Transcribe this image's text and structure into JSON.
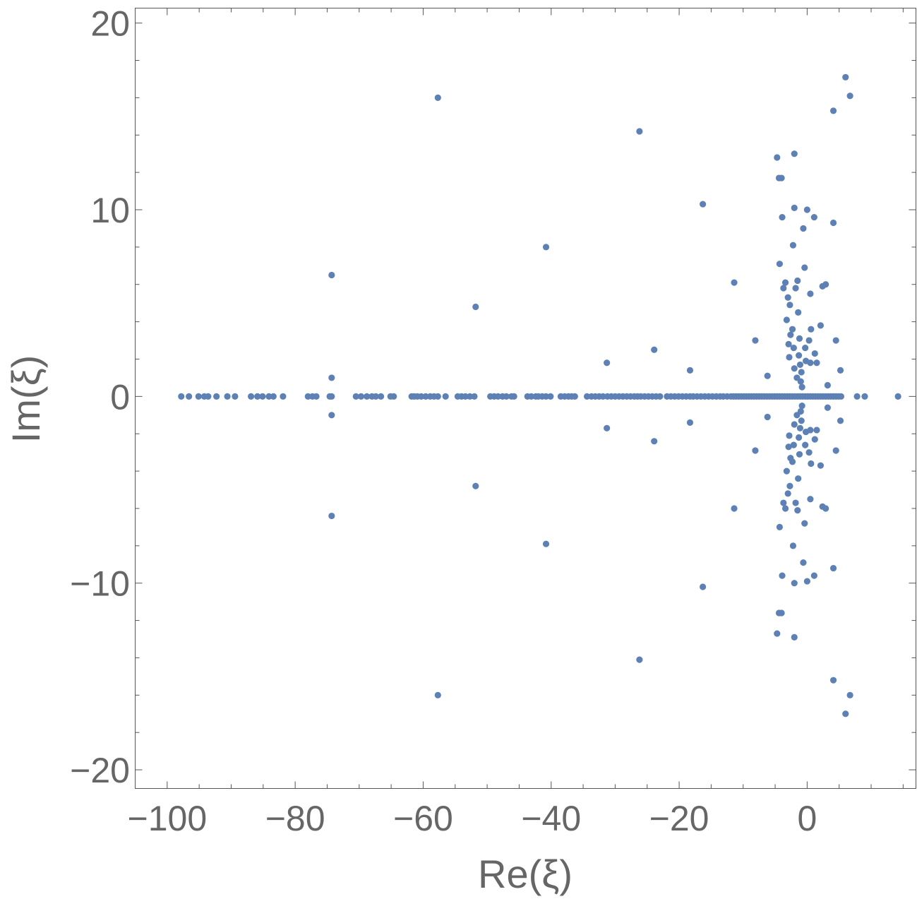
{
  "chart_data": {
    "type": "scatter",
    "title": "",
    "xlabel": "Re(ξ)",
    "ylabel": "Im(ξ)",
    "xlim": [
      -105,
      17
    ],
    "ylim": [
      -21,
      20.8
    ],
    "xticks": [
      -100,
      -80,
      -60,
      -40,
      -20,
      0
    ],
    "yticks": [
      -20,
      -10,
      0,
      10,
      20
    ],
    "xtick_labels": [
      "−100",
      "−80",
      "−60",
      "−40",
      "−20",
      "0"
    ],
    "ytick_labels": [
      "−20",
      "−10",
      "0",
      "10",
      "20"
    ],
    "grid": false,
    "marker_color": "#5E81B5",
    "real_axis_points": [
      -97.8,
      -96.6,
      -95.1,
      -94.2,
      -93.6,
      -92.3,
      -90.6,
      -89.4,
      -86.9,
      -85.9,
      -85.1,
      -84.1,
      -83.4,
      -81.9,
      -78.0,
      -77.3,
      -76.7,
      -74.6,
      -74.3,
      -70.5,
      -69.7,
      -68.8,
      -68.0,
      -67.4,
      -66.6,
      -65.1,
      -64.6,
      -61.8,
      -61.4,
      -60.9,
      -60.3,
      -59.6,
      -58.9,
      -58.3,
      -57.7,
      -56.5,
      -54.6,
      -54.0,
      -53.4,
      -52.7,
      -52.0,
      -49.5,
      -48.9,
      -48.3,
      -47.6,
      -47.0,
      -46.2,
      -45.8,
      -43.7,
      -43.1,
      -42.4,
      -42.0,
      -41.4,
      -40.8,
      -40.1,
      -38.5,
      -37.9,
      -37.3,
      -36.8,
      -36.3,
      -34.4,
      -33.7,
      -33.1,
      -32.5,
      -31.9,
      -31.2,
      -30.6,
      -30.0,
      -29.4,
      -28.8,
      -28.2,
      -27.6,
      -27.0,
      -26.5,
      -26.0,
      -25.4,
      -24.8,
      -24.2,
      -23.6,
      -23.0,
      -21.9,
      -21.3,
      -20.7,
      -20.1,
      -19.5,
      -18.9,
      -18.3,
      -17.8,
      -17.2,
      -16.6,
      -16.0,
      -15.4,
      -14.8,
      -14.2,
      -13.6,
      -13.1,
      -12.5,
      -11.9,
      -11.5,
      -11.1,
      -10.7,
      -10.3,
      -9.9,
      -9.5,
      -9.1,
      -8.7,
      -8.3,
      -7.9,
      -7.5,
      -7.1,
      -6.7,
      -6.3,
      -5.9,
      -5.5,
      -5.1,
      -4.7,
      -4.3,
      -3.9,
      -3.5,
      -3.1,
      -2.7,
      -2.3,
      -1.9,
      -1.5,
      -1.1,
      -0.7,
      -0.3,
      0.1,
      0.5,
      0.9,
      1.3,
      1.7,
      2.1,
      2.5,
      2.9,
      3.3,
      3.7,
      4.1,
      4.5,
      4.9,
      5.3,
      7.8,
      9.0,
      14.2
    ],
    "complex_points": [
      [
        -74.3,
        6.5
      ],
      [
        -74.3,
        1.0
      ],
      [
        -57.7,
        16.0
      ],
      [
        -51.8,
        4.8
      ],
      [
        -40.8,
        8.0
      ],
      [
        -31.3,
        1.8
      ],
      [
        -26.2,
        14.2
      ],
      [
        -23.9,
        2.5
      ],
      [
        -18.3,
        1.4
      ],
      [
        -16.3,
        10.3
      ],
      [
        -11.4,
        6.1
      ],
      [
        -8.1,
        3.0
      ],
      [
        -6.2,
        1.1
      ],
      [
        -4.7,
        12.8
      ],
      [
        -4.4,
        11.7
      ],
      [
        -4.0,
        11.7
      ],
      [
        -3.9,
        9.6
      ],
      [
        -4.3,
        7.1
      ],
      [
        -3.7,
        5.8
      ],
      [
        -3.4,
        6.1
      ],
      [
        -3.2,
        4.1
      ],
      [
        -3.0,
        5.3
      ],
      [
        -2.9,
        2.8
      ],
      [
        -2.8,
        2.1
      ],
      [
        -2.7,
        4.9
      ],
      [
        -2.6,
        3.3
      ],
      [
        -2.3,
        3.6
      ],
      [
        -2.1,
        2.6
      ],
      [
        -2.0,
        13.0
      ],
      [
        -2.0,
        10.1
      ],
      [
        -2.2,
        8.1
      ],
      [
        -2.0,
        1.5
      ],
      [
        -1.8,
        5.8
      ],
      [
        -1.6,
        1.0
      ],
      [
        -1.5,
        6.2
      ],
      [
        -1.4,
        4.5
      ],
      [
        -1.3,
        2.2
      ],
      [
        -1.2,
        3.1
      ],
      [
        -1.1,
        1.7
      ],
      [
        -1.0,
        0.8
      ],
      [
        -0.9,
        1.3
      ],
      [
        -0.8,
        0.5
      ],
      [
        -0.6,
        9.0
      ],
      [
        -0.4,
        6.9
      ],
      [
        -0.3,
        2.6
      ],
      [
        -0.2,
        1.9
      ],
      [
        0.0,
        10.0
      ],
      [
        0.3,
        3.0
      ],
      [
        0.5,
        5.5
      ],
      [
        0.6,
        3.6
      ],
      [
        0.5,
        1.8
      ],
      [
        1.1,
        9.6
      ],
      [
        1.2,
        2.3
      ],
      [
        1.5,
        1.8
      ],
      [
        2.1,
        3.8
      ],
      [
        2.4,
        5.9
      ],
      [
        2.9,
        6.0
      ],
      [
        3.2,
        0.6
      ],
      [
        4.1,
        9.3
      ],
      [
        4.1,
        15.3
      ],
      [
        4.5,
        3.0
      ],
      [
        5.2,
        1.4
      ],
      [
        6.0,
        17.1
      ],
      [
        6.7,
        16.1
      ],
      [
        -74.3,
        -1.0
      ],
      [
        -74.3,
        -6.4
      ],
      [
        -57.7,
        -16.0
      ],
      [
        -51.8,
        -4.8
      ],
      [
        -40.8,
        -7.9
      ],
      [
        -31.3,
        -1.7
      ],
      [
        -26.2,
        -14.1
      ],
      [
        -23.9,
        -2.4
      ],
      [
        -18.3,
        -1.4
      ],
      [
        -16.3,
        -10.2
      ],
      [
        -11.4,
        -6.0
      ],
      [
        -8.1,
        -2.9
      ],
      [
        -6.2,
        -1.1
      ],
      [
        -4.7,
        -12.7
      ],
      [
        -4.4,
        -11.6
      ],
      [
        -4.0,
        -11.6
      ],
      [
        -3.9,
        -9.6
      ],
      [
        -4.3,
        -7.0
      ],
      [
        -3.7,
        -5.7
      ],
      [
        -3.4,
        -6.0
      ],
      [
        -3.2,
        -4.0
      ],
      [
        -3.0,
        -5.2
      ],
      [
        -2.9,
        -2.7
      ],
      [
        -2.8,
        -2.1
      ],
      [
        -2.7,
        -4.8
      ],
      [
        -2.6,
        -3.3
      ],
      [
        -2.3,
        -3.5
      ],
      [
        -2.1,
        -2.6
      ],
      [
        -2.0,
        -12.9
      ],
      [
        -2.0,
        -10.0
      ],
      [
        -2.2,
        -8.0
      ],
      [
        -2.0,
        -1.5
      ],
      [
        -1.8,
        -5.7
      ],
      [
        -1.6,
        -1.0
      ],
      [
        -1.5,
        -6.1
      ],
      [
        -1.4,
        -4.4
      ],
      [
        -1.3,
        -2.2
      ],
      [
        -1.2,
        -3.1
      ],
      [
        -1.1,
        -1.7
      ],
      [
        -1.0,
        -0.8
      ],
      [
        -0.9,
        -1.3
      ],
      [
        -0.8,
        -0.5
      ],
      [
        -0.6,
        -8.9
      ],
      [
        -0.4,
        -6.8
      ],
      [
        -0.3,
        -2.6
      ],
      [
        -0.2,
        -1.9
      ],
      [
        0.0,
        -9.9
      ],
      [
        0.3,
        -3.0
      ],
      [
        0.5,
        -5.5
      ],
      [
        0.6,
        -3.6
      ],
      [
        0.5,
        -1.8
      ],
      [
        1.1,
        -9.6
      ],
      [
        1.2,
        -2.3
      ],
      [
        1.5,
        -1.8
      ],
      [
        2.1,
        -3.7
      ],
      [
        2.4,
        -5.9
      ],
      [
        2.9,
        -6.0
      ],
      [
        3.2,
        -0.6
      ],
      [
        4.1,
        -9.2
      ],
      [
        4.1,
        -15.2
      ],
      [
        4.5,
        -2.9
      ],
      [
        5.2,
        -1.3
      ],
      [
        6.0,
        -17.0
      ],
      [
        6.7,
        -16.0
      ]
    ]
  }
}
